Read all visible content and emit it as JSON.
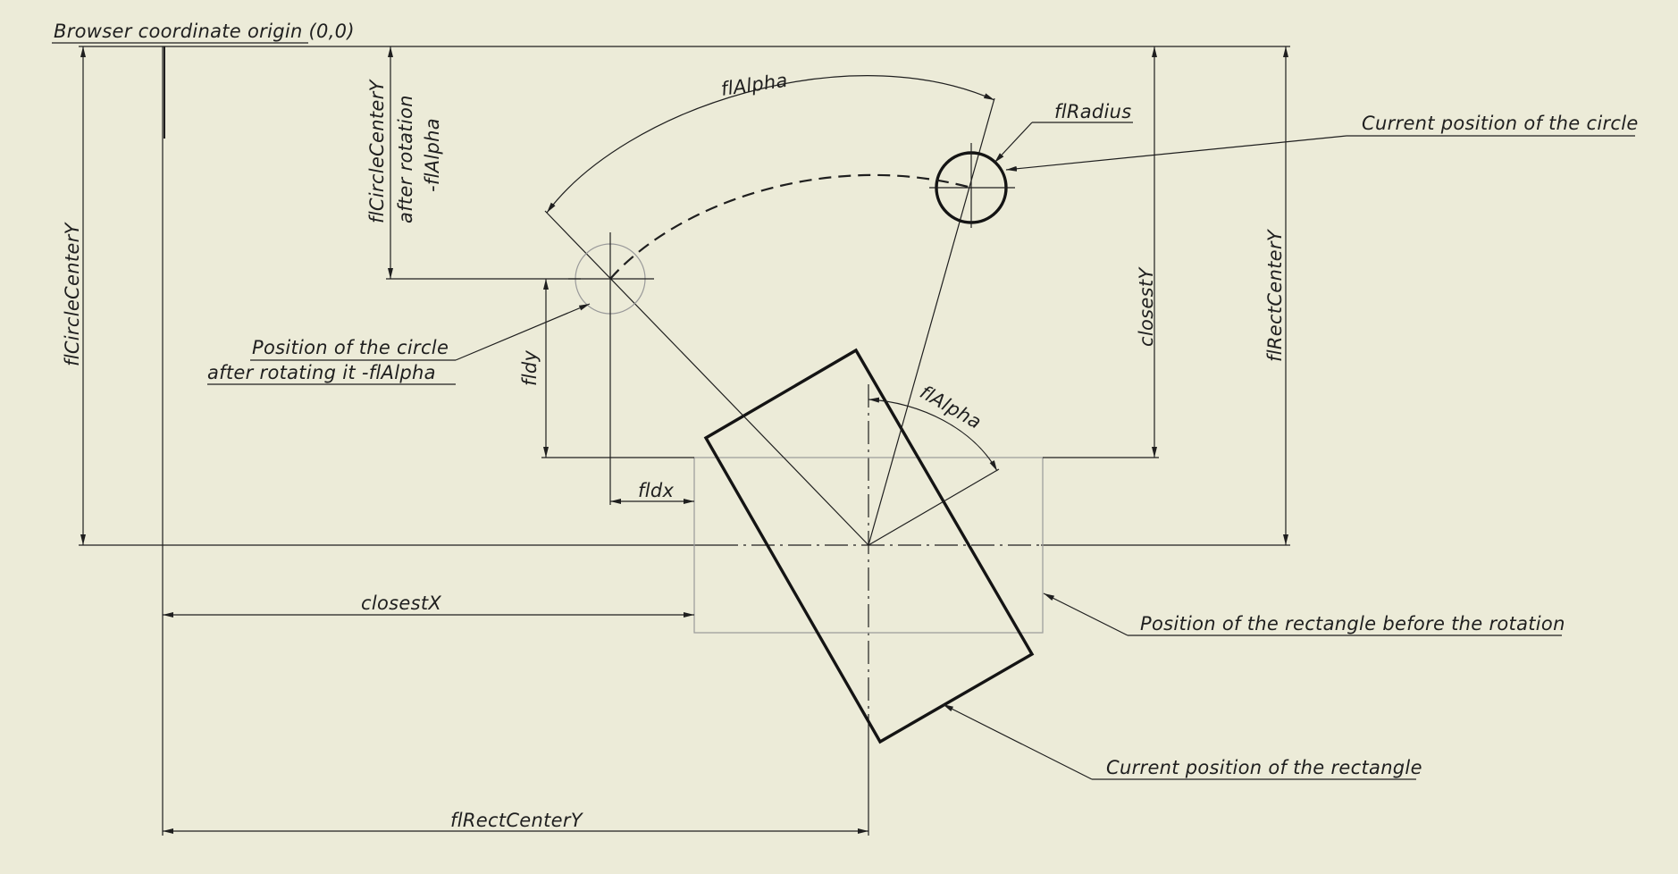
{
  "labels": {
    "origin": "Browser coordinate origin (0,0)",
    "alpha_top": "flAlpha",
    "radius": "flRadius",
    "current_circle": "Current position of the circle",
    "circle_center_y_after": "flCircleCenterY",
    "after_rotation": "after rotation",
    "neg_alpha": "-flAlpha",
    "circle_center_y": "flCircleCenterY",
    "closest_y": "closestY",
    "rect_center_y_vertical": "flRectCenterY",
    "rotated_circle_line1": "Position of the circle",
    "rotated_circle_line2": "after rotating it -flAlpha",
    "dy": "fldy",
    "alpha_inner": "flAlpha",
    "dx": "fldx",
    "closest_x": "closestX",
    "rect_before": "Position of the rectangle before the rotation",
    "current_rect": "Current position of the rectangle",
    "rect_center_y_bottom": "flRectCenterY"
  },
  "colors": {
    "background": "#ecebd8",
    "ink": "#1f1f1f",
    "ghost": "#9a9a9a"
  }
}
